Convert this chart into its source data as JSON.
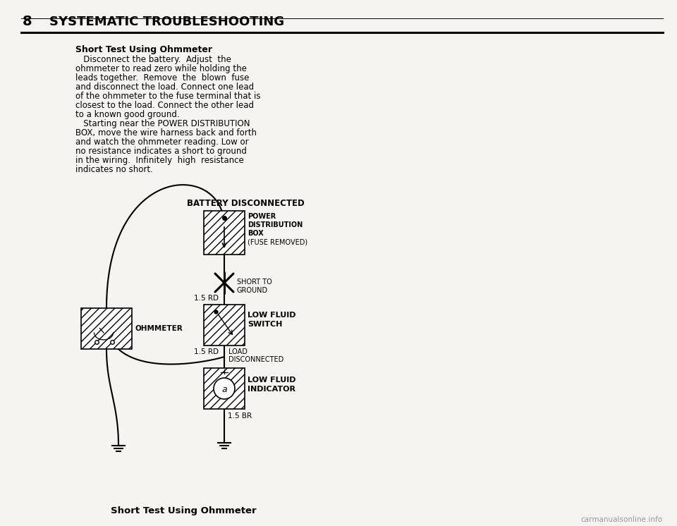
{
  "bg_color": "#f5f4f0",
  "title_number": "8",
  "title_text": "SYSTEMATIC TROUBLESHOOTING",
  "section_title": "Short Test Using Ohmmeter",
  "body_text_lines": [
    "   Disconnect the battery.  Adjust  the",
    "ohmmeter to read zero while holding the",
    "leads together.  Remove  the  blown  fuse",
    "and disconnect the load. Connect one lead",
    "of the ohmmeter to the fuse terminal that is",
    "closest to the load. Connect the other lead",
    "to a known good ground.",
    "   Starting near the POWER DISTRIBUTION",
    "BOX, move the wire harness back and forth",
    "and watch the ohmmeter reading. Low or",
    "no resistance indicates a short to ground",
    "in the wiring.  Infinitely  high  resistance",
    "indicates no short."
  ],
  "diagram_title": "BATTERY DISCONNECTED",
  "box1_label_lines": [
    "POWER",
    "DISTRIBUTION",
    "BOX",
    "(FUSE REMOVED)"
  ],
  "box1_label_bold": [
    true,
    true,
    true,
    false
  ],
  "box2_label_lines": [
    "LOW FLUID",
    "SWITCH"
  ],
  "box3_label_lines": [
    "LOW FLUID",
    "INDICATOR"
  ],
  "ohmmeter_label": "OHMMETER",
  "short_label": "SHORT TO\nGROUND",
  "wire1_label": "1.5 RD",
  "wire2_label": "1.5 RD",
  "wire3_label": "LOAD\nDISCONNECTED",
  "wire4_label": "1.5 BR",
  "caption": "Short Test Using Ohmmeter",
  "watermark": "carmanualsonline.info"
}
